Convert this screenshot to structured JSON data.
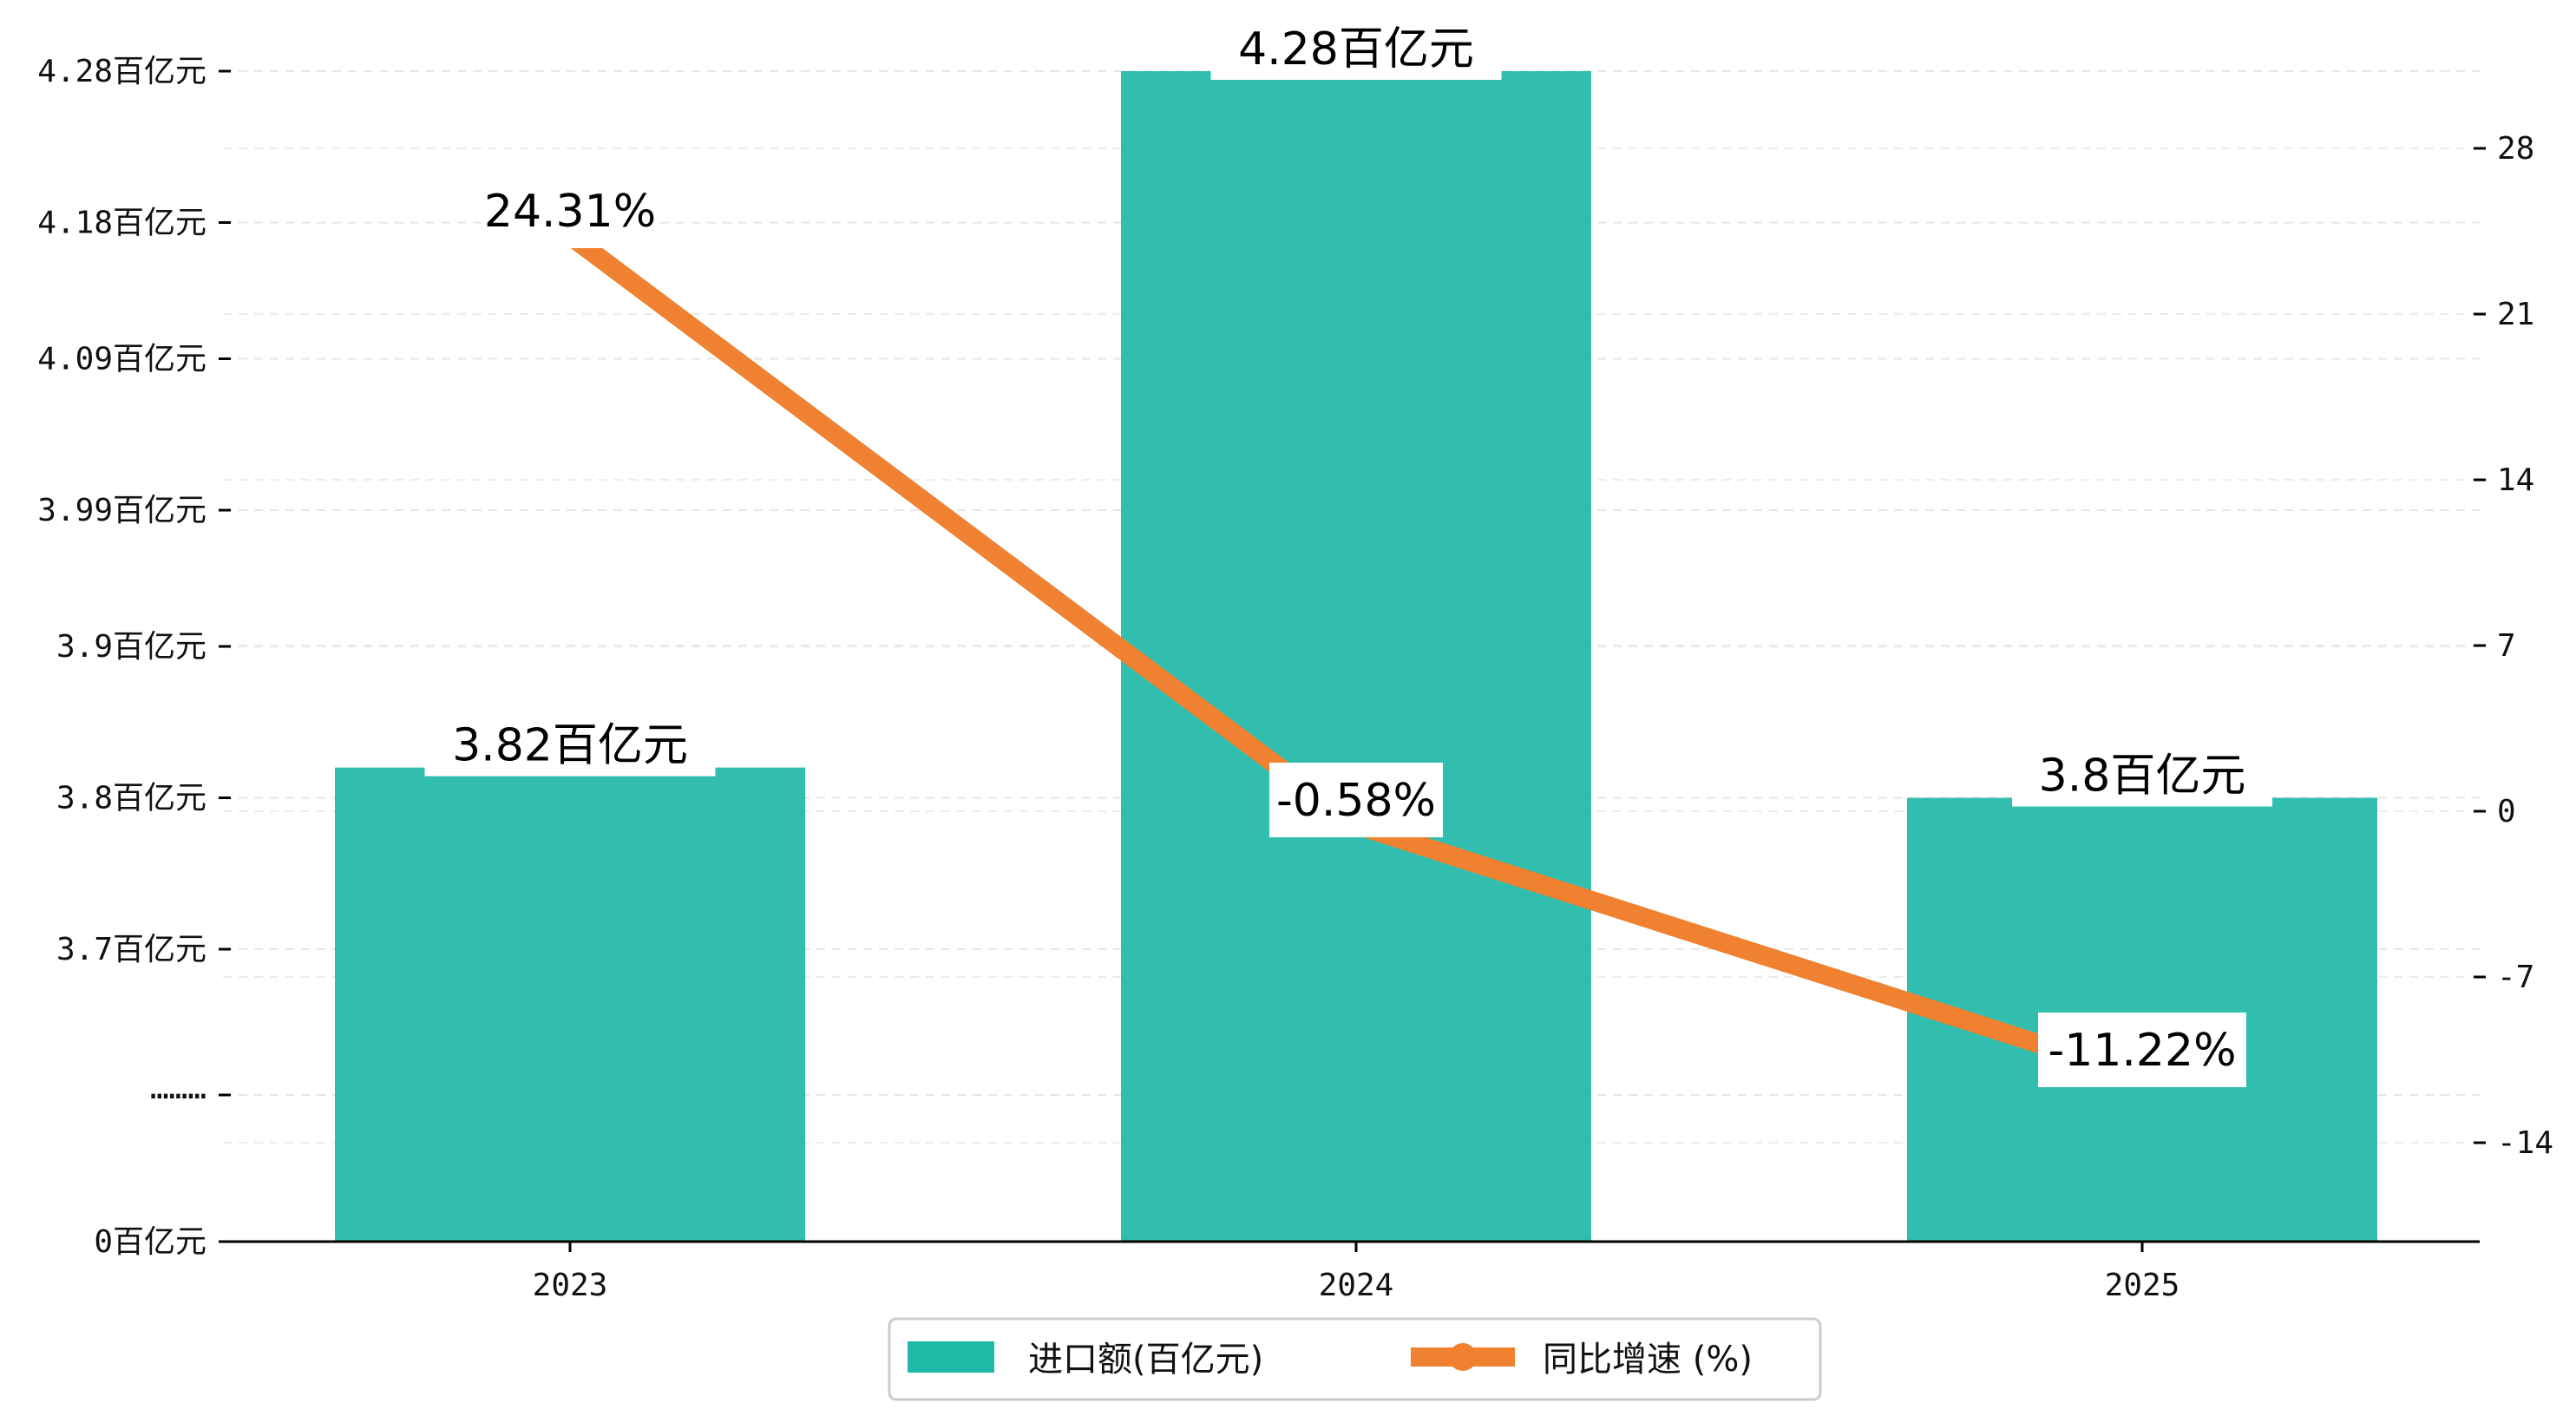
{
  "chart_data": {
    "type": "bar+line",
    "categories": [
      "2023",
      "2024",
      "2025"
    ],
    "series": [
      {
        "name": "进口额(百亿元)",
        "type": "bar",
        "axis": "left",
        "values": [
          3.82,
          4.28,
          3.8
        ],
        "labels": [
          "3.82百亿元",
          "4.28百亿元",
          "3.8百亿元"
        ],
        "color": "#1fb9a8"
      },
      {
        "name": "同比增速 (%)",
        "type": "line",
        "axis": "right",
        "values": [
          24.31,
          -0.58,
          -11.22
        ],
        "labels": [
          "24.31%",
          "-0.58%",
          "-11.22%"
        ],
        "color": "#ef8130"
      }
    ],
    "y_left": {
      "broken_axis": true,
      "ticks": [
        {
          "value": 0,
          "label": "0百亿元"
        },
        {
          "value": null,
          "label": "………"
        },
        {
          "value": 3.7,
          "label": "3.7百亿元"
        },
        {
          "value": 3.8,
          "label": "3.8百亿元"
        },
        {
          "value": 3.9,
          "label": "3.9百亿元"
        },
        {
          "value": 3.99,
          "label": "3.99百亿元"
        },
        {
          "value": 4.09,
          "label": "4.09百亿元"
        },
        {
          "value": 4.18,
          "label": "4.18百亿元"
        },
        {
          "value": 4.28,
          "label": "4.28百亿元"
        }
      ]
    },
    "y_right": {
      "ticks": [
        -14,
        -7,
        0,
        7,
        14,
        21,
        28
      ],
      "ylim": [
        -18.2,
        32.2
      ]
    },
    "grid": "horizontal-dashed",
    "legend_position": "bottom-center"
  }
}
